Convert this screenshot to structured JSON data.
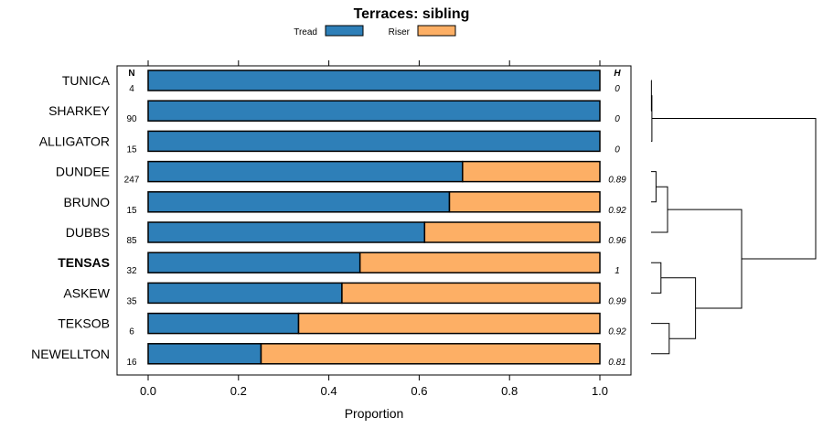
{
  "chart_data": {
    "type": "bar",
    "stacked": true,
    "orientation": "horizontal",
    "title": "Terraces: sibling",
    "xlabel": "Proportion",
    "xlim": [
      0,
      1
    ],
    "xticks": [
      "0.0",
      "0.2",
      "0.4",
      "0.6",
      "0.8",
      "1.0"
    ],
    "xtick_values": [
      0,
      0.2,
      0.4,
      0.6,
      0.8,
      1.0
    ],
    "n_header": "N",
    "h_header": "H",
    "legend_position": "top",
    "highlight": "TENSAS",
    "categories": [
      "TUNICA",
      "SHARKEY",
      "ALLIGATOR",
      "DUNDEE",
      "BRUNO",
      "DUBBS",
      "TENSAS",
      "ASKEW",
      "TEKSOB",
      "NEWELLTON"
    ],
    "n": [
      "4",
      "90",
      "15",
      "247",
      "15",
      "85",
      "32",
      "35",
      "6",
      "16"
    ],
    "h": [
      "0",
      "0",
      "0",
      "0.89",
      "0.92",
      "0.96",
      "1",
      "0.99",
      "0.92",
      "0.81"
    ],
    "series": [
      {
        "name": "Tread",
        "color": "#2E7FB8",
        "values": [
          1.0,
          1.0,
          1.0,
          0.696,
          0.667,
          0.612,
          0.469,
          0.429,
          0.333,
          0.25
        ]
      },
      {
        "name": "Riser",
        "color": "#FDAF65",
        "values": [
          0.0,
          0.0,
          0.0,
          0.304,
          0.333,
          0.388,
          0.531,
          0.571,
          0.667,
          0.75
        ]
      }
    ],
    "dendrogram": {
      "description": "hierarchical clustering of rows",
      "merges": [
        {
          "a": "TUNICA",
          "b": "SHARKEY",
          "height": 0.002
        },
        {
          "a": "TUNICA+SHARKEY",
          "b": "ALLIGATOR",
          "height": 0.005
        },
        {
          "a": "DUNDEE",
          "b": "BRUNO",
          "height": 0.03
        },
        {
          "a": "DUNDEE+BRUNO",
          "b": "DUBBS",
          "height": 0.1
        },
        {
          "a": "TENSAS",
          "b": "ASKEW",
          "height": 0.06
        },
        {
          "a": "TEKSOB",
          "b": "NEWELLTON",
          "height": 0.11
        },
        {
          "a": "TENSAS+ASKEW",
          "b": "TEKSOB+NEWELLTON",
          "height": 0.27
        },
        {
          "a": "DUNDEE+BRUNO+DUBBS",
          "b": "TENSAS+ASKEW+TEKSOB+NEWELLTON",
          "height": 0.55
        },
        {
          "a": "TUNICA+SHARKEY+ALLIGATOR",
          "b": "rest",
          "height": 1.0
        }
      ]
    }
  }
}
